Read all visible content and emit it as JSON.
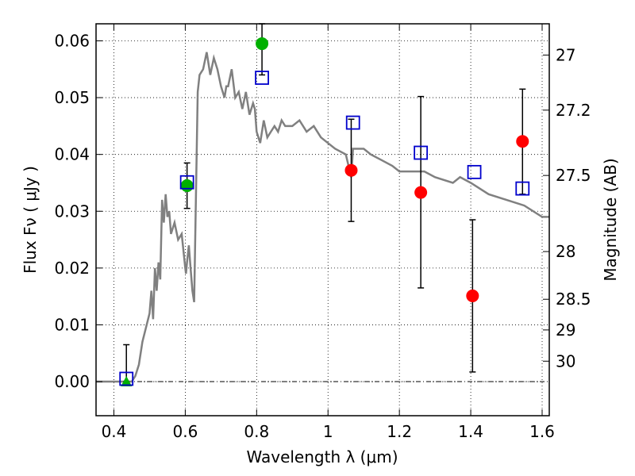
{
  "chart_data": {
    "type": "scatter",
    "xlabel": "Wavelength  λ (μm)",
    "ylabel": "Flux  Fν  ( μJy )",
    "y2label": "Magnitude (AB)",
    "xlim": [
      0.35,
      1.62
    ],
    "ylim": [
      -0.006,
      0.063
    ],
    "grid": true,
    "colors": {
      "model": "#808080",
      "observed_red": "#ff0000",
      "observed_green": "#00b000",
      "model_photometry": "#0000cc",
      "errorbar": "#000000"
    },
    "x_ticks": [
      {
        "value": 0.4,
        "label": "0.4"
      },
      {
        "value": 0.6,
        "label": "0.6"
      },
      {
        "value": 0.8,
        "label": "0.8"
      },
      {
        "value": 1.0,
        "label": "1"
      },
      {
        "value": 1.2,
        "label": "1.2"
      },
      {
        "value": 1.4,
        "label": "1.4"
      },
      {
        "value": 1.6,
        "label": "1.6"
      }
    ],
    "y_ticks": [
      {
        "value": 0.0,
        "label": "0.00"
      },
      {
        "value": 0.01,
        "label": "0.01"
      },
      {
        "value": 0.02,
        "label": "0.02"
      },
      {
        "value": 0.03,
        "label": "0.03"
      },
      {
        "value": 0.04,
        "label": "0.04"
      },
      {
        "value": 0.05,
        "label": "0.05"
      },
      {
        "value": 0.06,
        "label": "0.06"
      }
    ],
    "y2_ticks": [
      {
        "flux": 0.0575,
        "label": "27"
      },
      {
        "flux": 0.0478,
        "label": "27.2"
      },
      {
        "flux": 0.0363,
        "label": "27.5"
      },
      {
        "flux": 0.0229,
        "label": "28"
      },
      {
        "flux": 0.0145,
        "label": "28.5"
      },
      {
        "flux": 0.0091,
        "label": "29"
      },
      {
        "flux": 0.0036,
        "label": "30"
      }
    ],
    "model_spectrum": {
      "x": [
        0.35,
        0.45,
        0.46,
        0.47,
        0.48,
        0.5,
        0.505,
        0.51,
        0.515,
        0.52,
        0.525,
        0.53,
        0.535,
        0.54,
        0.545,
        0.55,
        0.555,
        0.56,
        0.57,
        0.58,
        0.59,
        0.6,
        0.602,
        0.605,
        0.61,
        0.615,
        0.62,
        0.625,
        0.63,
        0.635,
        0.64,
        0.65,
        0.66,
        0.67,
        0.68,
        0.69,
        0.7,
        0.71,
        0.715,
        0.72,
        0.73,
        0.74,
        0.75,
        0.76,
        0.77,
        0.78,
        0.79,
        0.795,
        0.8,
        0.81,
        0.82,
        0.83,
        0.84,
        0.85,
        0.86,
        0.87,
        0.88,
        0.9,
        0.92,
        0.94,
        0.96,
        0.98,
        1.0,
        1.02,
        1.05,
        1.065,
        1.07,
        1.08,
        1.1,
        1.12,
        1.15,
        1.18,
        1.2,
        1.22,
        1.25,
        1.27,
        1.3,
        1.35,
        1.37,
        1.4,
        1.45,
        1.5,
        1.55,
        1.6,
        1.62
      ],
      "y": [
        0.0,
        0.0,
        0.001,
        0.003,
        0.007,
        0.012,
        0.016,
        0.011,
        0.02,
        0.016,
        0.021,
        0.018,
        0.032,
        0.028,
        0.033,
        0.029,
        0.03,
        0.026,
        0.028,
        0.025,
        0.026,
        0.02,
        0.019,
        0.021,
        0.024,
        0.02,
        0.016,
        0.014,
        0.033,
        0.051,
        0.054,
        0.055,
        0.058,
        0.054,
        0.057,
        0.055,
        0.052,
        0.05,
        0.052,
        0.052,
        0.055,
        0.05,
        0.051,
        0.048,
        0.051,
        0.047,
        0.049,
        0.048,
        0.044,
        0.042,
        0.046,
        0.043,
        0.044,
        0.045,
        0.044,
        0.046,
        0.045,
        0.045,
        0.046,
        0.044,
        0.045,
        0.043,
        0.042,
        0.041,
        0.04,
        0.036,
        0.041,
        0.041,
        0.041,
        0.04,
        0.039,
        0.038,
        0.037,
        0.037,
        0.037,
        0.037,
        0.036,
        0.035,
        0.036,
        0.035,
        0.033,
        0.032,
        0.031,
        0.029,
        0.029
      ]
    },
    "observed_points": [
      {
        "x": 0.435,
        "y": 0.0,
        "color": "green",
        "marker": "triangle",
        "err_low": 0.0,
        "err_high": 0.0065
      },
      {
        "x": 0.605,
        "y": 0.0345,
        "color": "green",
        "marker": "circle",
        "err_low": 0.0305,
        "err_high": 0.0385
      },
      {
        "x": 0.815,
        "y": 0.0595,
        "color": "green",
        "marker": "circle",
        "err_low": 0.054,
        "err_high": 0.063
      },
      {
        "x": 1.065,
        "y": 0.0372,
        "color": "red",
        "marker": "circle",
        "err_low": 0.0282,
        "err_high": 0.0462
      },
      {
        "x": 1.26,
        "y": 0.0333,
        "color": "red",
        "marker": "circle",
        "err_low": 0.0165,
        "err_high": 0.0502
      },
      {
        "x": 1.405,
        "y": 0.0151,
        "color": "red",
        "marker": "circle",
        "err_low": 0.0017,
        "err_high": 0.0285
      },
      {
        "x": 1.545,
        "y": 0.0423,
        "color": "red",
        "marker": "circle",
        "err_low": 0.033,
        "err_high": 0.0515
      }
    ],
    "model_photometry": [
      {
        "x": 0.435,
        "y": 0.0005
      },
      {
        "x": 0.605,
        "y": 0.0351
      },
      {
        "x": 0.815,
        "y": 0.0535
      },
      {
        "x": 1.07,
        "y": 0.0456
      },
      {
        "x": 1.26,
        "y": 0.0403
      },
      {
        "x": 1.41,
        "y": 0.0369
      },
      {
        "x": 1.545,
        "y": 0.034
      }
    ]
  }
}
